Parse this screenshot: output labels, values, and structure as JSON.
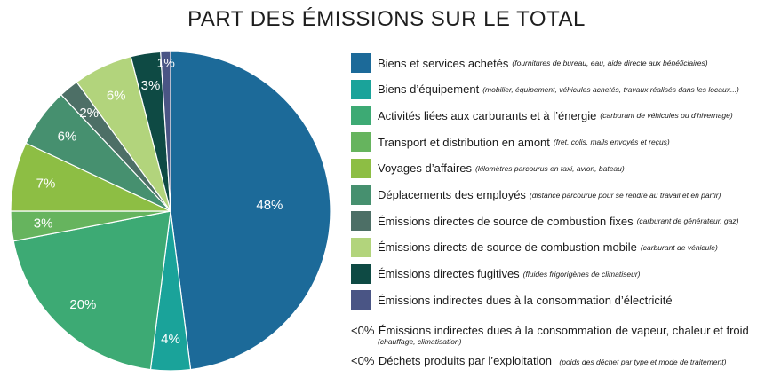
{
  "chart_data": {
    "type": "pie",
    "title": "PART DES ÉMISSIONS SUR LE TOTAL",
    "slices": [
      {
        "label": "48%",
        "value": 48,
        "color": "#1c6a99"
      },
      {
        "label": "4%",
        "value": 4,
        "color": "#1aa39a"
      },
      {
        "label": "20%",
        "value": 20,
        "color": "#3daa74"
      },
      {
        "label": "3%",
        "value": 3,
        "color": "#66b45e"
      },
      {
        "label": "7%",
        "value": 7,
        "color": "#8dbe44"
      },
      {
        "label": "6%",
        "value": 6,
        "color": "#46906f"
      },
      {
        "label": "2%",
        "value": 2,
        "color": "#4d6f66"
      },
      {
        "label": "6%",
        "value": 6,
        "color": "#b2d47c"
      },
      {
        "label": "3%",
        "value": 3,
        "color": "#0e4a44"
      },
      {
        "label": "1%",
        "value": 1,
        "color": "#4a5585"
      }
    ],
    "legend": [
      {
        "label": "Biens et services achetés",
        "note": "(fournitures de bureau, eau, aide directe aux bénéficiaires)",
        "color": "#1c6a99"
      },
      {
        "label": "Biens d’équipement",
        "note": "(mobilier, équipement, véhicules achetés, travaux réalisés dans les locaux...)",
        "color": "#1aa39a"
      },
      {
        "label": "Activités liées aux carburants et à l’énergie",
        "note": "(carburant de véhicules ou d’hivernage)",
        "color": "#3daa74"
      },
      {
        "label": "Transport et distribution en amont",
        "note": "(fret, colis, mails envoyés et reçus)",
        "color": "#66b45e"
      },
      {
        "label": "Voyages d’affaires",
        "note": "(kilomètres parcourus en taxi, avion, bateau)",
        "color": "#8dbe44"
      },
      {
        "label": "Déplacements des employés",
        "note": "(distance parcourue pour se rendre au travail et en partir)",
        "color": "#46906f"
      },
      {
        "label": "Émissions directes de source de combustion fixes",
        "note": "(carburant de générateur, gaz)",
        "color": "#4d6f66"
      },
      {
        "label": "Émissions directs de source de combustion mobile",
        "note": "(carburant de véhicule)",
        "color": "#b2d47c"
      },
      {
        "label": "Émissions directes fugitives",
        "note": "(fluides frigorigènes de climatiseur)",
        "color": "#0e4a44"
      },
      {
        "label": "Émissions indirectes dues à la consommation d’électricité",
        "note": "",
        "color": "#4a5585"
      }
    ],
    "zero_items": [
      {
        "prefix": "<0%",
        "label": "Émissions indirectes dues à la consommation de vapeur, chaleur et froid",
        "note": "(chauffage, climatisation)"
      },
      {
        "prefix": "<0%",
        "label": "Déchets produits par l’exploitation",
        "note": "(poids des déchet par type et mode de traitement)"
      }
    ]
  }
}
